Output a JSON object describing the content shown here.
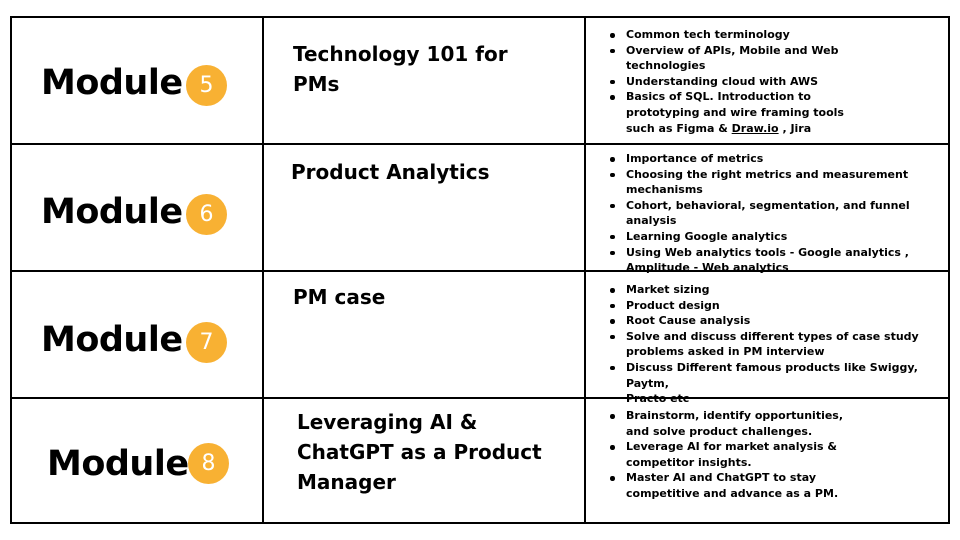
{
  "rows": [
    {
      "module_label": "Module",
      "module_number": "5",
      "title_lines": [
        "Technology 101 for",
        "PMs"
      ],
      "bullets": [
        [
          "Common tech terminology"
        ],
        [
          "Overview of APIs, Mobile and Web",
          "technologies"
        ],
        [
          "Understanding cloud with AWS"
        ],
        [
          "Basics of SQL. Introduction to",
          "prototyping and wire framing tools"
        ]
      ],
      "bullet_last": {
        "prefix": "such as Figma & ",
        "link": "Draw.io",
        "suffix": " , Jira"
      }
    },
    {
      "module_label": "Module",
      "module_number": "6",
      "title_lines": [
        "Product Analytics"
      ],
      "bullets": [
        [
          "Importance of metrics"
        ],
        [
          "Choosing the right metrics and measurement",
          "mechanisms"
        ],
        [
          "Cohort, behavioral, segmentation, and funnel analysis"
        ],
        [
          "Learning Google analytics"
        ],
        [
          "Using Web analytics tools - Google analytics ,",
          "Amplitude - Web analytics"
        ]
      ]
    },
    {
      "module_label": "Module",
      "module_number": "7",
      "title_lines": [
        "PM case"
      ],
      "bullets": [
        [
          "Market sizing"
        ],
        [
          "Product design"
        ],
        [
          "Root Cause analysis"
        ],
        [
          "Solve and discuss different types of case study",
          "problems asked in PM interview"
        ],
        [
          "Discuss Different famous products like Swiggy, Paytm,",
          "Practo etc"
        ]
      ]
    },
    {
      "module_label": "Module",
      "module_number": "8",
      "title_lines": [
        "Leveraging AI &",
        "ChatGPT as a Product",
        "Manager"
      ],
      "bullets": [
        [
          "Brainstorm, identify opportunities,",
          "and solve product challenges."
        ],
        [
          "Leverage AI for market analysis &",
          "competitor insights."
        ],
        [
          "Master AI and ChatGPT to stay",
          "competitive and advance as a PM."
        ]
      ]
    }
  ],
  "colors": {
    "badge": "#f8b133",
    "border": "#000000",
    "text": "#000000"
  }
}
